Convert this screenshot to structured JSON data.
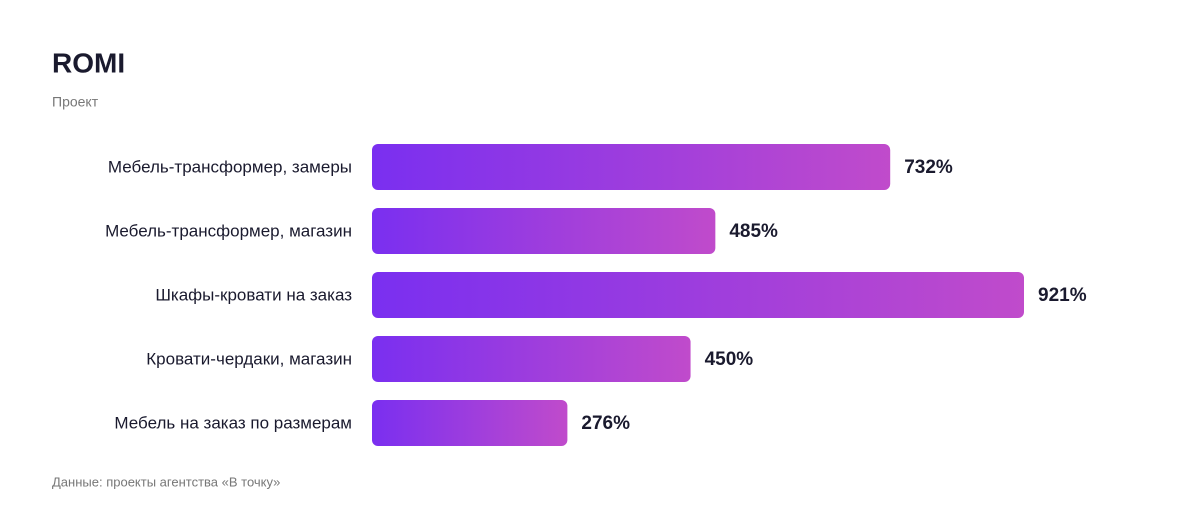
{
  "chart_data": {
    "type": "bar",
    "orientation": "horizontal",
    "title": "ROMI",
    "subtitle": "Проект",
    "categories": [
      "Мебель-трансформер, замеры",
      "Мебель-трансформер, магазин",
      "Шкафы-кровати на заказ",
      "Кровати-чердаки, магазин",
      "Мебель на заказ по размерам"
    ],
    "values": [
      732,
      485,
      921,
      450,
      276
    ],
    "value_labels": [
      "732%",
      "485%",
      "921%",
      "450%",
      "276%"
    ],
    "colors": [
      "#7a2ff0",
      "#c04bcb"
    ],
    "source": "Данные: проекты агентства «В точку»"
  }
}
